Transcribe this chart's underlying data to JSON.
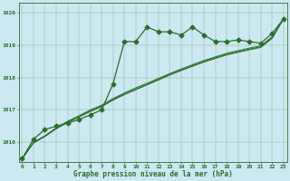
{
  "title": "Graphe pression niveau de la mer (hPa)",
  "bg_color": "#cce8f0",
  "line_color": "#2d6e2d",
  "x_hours": [
    0,
    1,
    2,
    3,
    4,
    5,
    6,
    7,
    8,
    9,
    10,
    11,
    12,
    13,
    14,
    15,
    16,
    17,
    18,
    19,
    20,
    21,
    22,
    23
  ],
  "main_line": [
    1015.5,
    1016.1,
    1016.4,
    1016.5,
    1016.6,
    1016.7,
    1016.85,
    1017.0,
    1017.8,
    1019.1,
    1019.1,
    1019.55,
    1019.4,
    1019.4,
    1019.3,
    1019.55,
    1019.3,
    1019.1,
    1019.1,
    1019.15,
    1019.1,
    1019.05,
    1019.35,
    1019.8
  ],
  "smooth1": [
    1015.5,
    1016.0,
    1016.2,
    1016.45,
    1016.65,
    1016.82,
    1017.0,
    1017.15,
    1017.35,
    1017.52,
    1017.68,
    1017.82,
    1017.97,
    1018.12,
    1018.26,
    1018.39,
    1018.52,
    1018.63,
    1018.74,
    1018.82,
    1018.9,
    1018.97,
    1019.25,
    1019.8
  ],
  "smooth2": [
    1015.5,
    1016.0,
    1016.2,
    1016.44,
    1016.63,
    1016.8,
    1016.97,
    1017.12,
    1017.32,
    1017.49,
    1017.64,
    1017.79,
    1017.94,
    1018.09,
    1018.23,
    1018.36,
    1018.49,
    1018.6,
    1018.71,
    1018.79,
    1018.87,
    1018.94,
    1019.22,
    1019.8
  ],
  "smooth3": [
    1015.5,
    1015.98,
    1016.18,
    1016.42,
    1016.61,
    1016.78,
    1016.95,
    1017.1,
    1017.3,
    1017.47,
    1017.62,
    1017.77,
    1017.92,
    1018.07,
    1018.21,
    1018.34,
    1018.47,
    1018.58,
    1018.69,
    1018.77,
    1018.85,
    1018.92,
    1019.2,
    1019.8
  ],
  "ylim": [
    1015.4,
    1020.3
  ],
  "yticks": [
    1016,
    1017,
    1018,
    1019,
    1020
  ],
  "marker": "D",
  "marker_size": 2.5,
  "figwidth": 3.2,
  "figheight": 2.0,
  "dpi": 100
}
